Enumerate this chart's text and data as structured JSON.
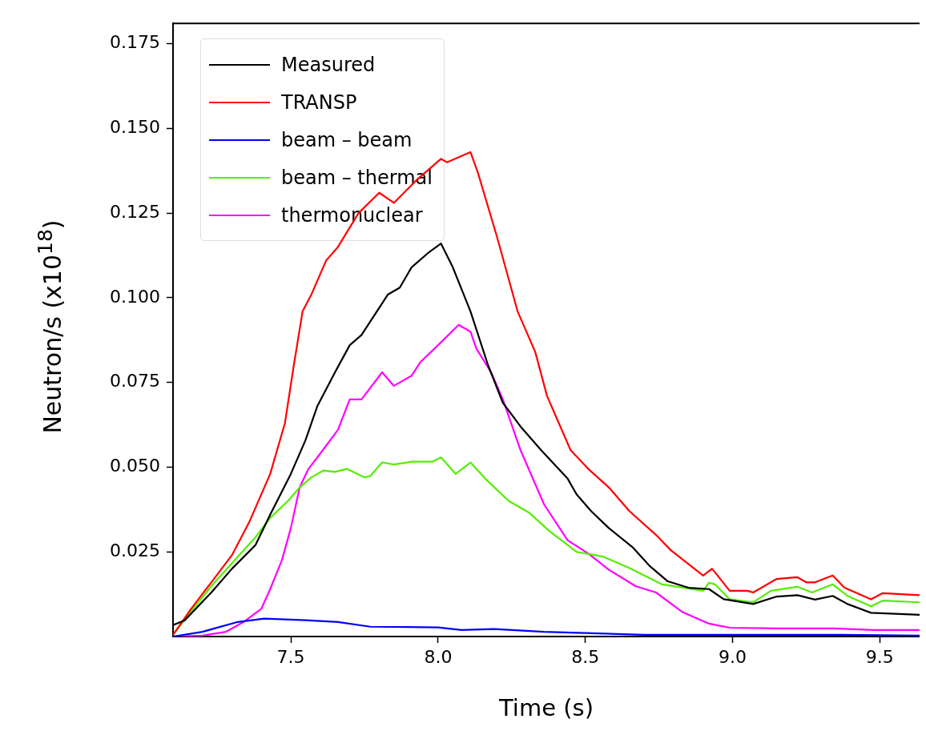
{
  "chart_data": {
    "type": "line",
    "xlabel": "Time (s)",
    "ylabel": "Neutron/s (x10$^{18}$)",
    "xlim": [
      7.1,
      9.635
    ],
    "ylim": [
      0,
      0.181
    ],
    "xticks": [
      7.5,
      {
        "value": 8,
        "label": "8.0"
      },
      8.5,
      {
        "value": 9,
        "label": "9.0"
      },
      9.5
    ],
    "yticks": [
      0.025,
      {
        "value": 0.05,
        "label": "0.050"
      },
      {
        "value": 0.075,
        "label": "0.075"
      },
      {
        "value": 0.1,
        "label": "0.100"
      },
      0.125,
      {
        "value": 0.15,
        "label": "0.150"
      },
      0.175
    ],
    "grid": false,
    "legend": "top left",
    "marker": "none",
    "line_style": "solid",
    "series": [
      {
        "name": "Measured",
        "color": "#000000",
        "x": [
          7.1,
          7.14,
          7.23,
          7.3,
          7.38,
          7.43,
          7.5,
          7.55,
          7.59,
          7.65,
          7.7,
          7.74,
          7.83,
          7.87,
          7.91,
          7.97,
          8.01,
          8.05,
          8.11,
          8.17,
          8.22,
          8.28,
          8.35,
          8.44,
          8.47,
          8.52,
          8.58,
          8.66,
          8.72,
          8.78,
          8.85,
          8.92,
          8.97,
          9.07,
          9.15,
          9.22,
          9.28,
          9.34,
          9.39,
          9.47,
          9.635
        ],
        "values": [
          0.0034,
          0.0048,
          0.013,
          0.02,
          0.027,
          0.036,
          0.048,
          0.058,
          0.068,
          0.078,
          0.086,
          0.089,
          0.101,
          0.103,
          0.109,
          0.1135,
          0.116,
          0.109,
          0.096,
          0.08,
          0.069,
          0.062,
          0.055,
          0.0466,
          0.042,
          0.037,
          0.032,
          0.0264,
          0.0207,
          0.0163,
          0.0144,
          0.014,
          0.011,
          0.0096,
          0.0118,
          0.0122,
          0.0109,
          0.012,
          0.0096,
          0.007,
          0.0064
        ]
      },
      {
        "name": "TRANSP",
        "color": "#ff0000",
        "x": [
          7.1,
          7.16,
          7.23,
          7.3,
          7.36,
          7.43,
          7.48,
          7.51,
          7.54,
          7.57,
          7.62,
          7.66,
          7.73,
          7.8,
          7.85,
          7.93,
          8.01,
          8.03,
          8.11,
          8.135,
          8.2,
          8.27,
          8.33,
          8.37,
          8.45,
          8.51,
          8.58,
          8.65,
          8.74,
          8.79,
          8.9,
          8.93,
          8.94,
          8.99,
          9.05,
          9.07,
          9.15,
          9.22,
          9.25,
          9.28,
          9.34,
          9.38,
          9.47,
          9.51,
          9.635
        ],
        "values": [
          0.0005,
          0.008,
          0.016,
          0.024,
          0.034,
          0.048,
          0.063,
          0.08,
          0.096,
          0.101,
          0.111,
          0.115,
          0.125,
          0.131,
          0.128,
          0.135,
          0.141,
          0.14,
          0.143,
          0.137,
          0.118,
          0.096,
          0.084,
          0.071,
          0.055,
          0.0495,
          0.044,
          0.037,
          0.03,
          0.0255,
          0.018,
          0.02,
          0.019,
          0.0135,
          0.0135,
          0.013,
          0.017,
          0.0175,
          0.016,
          0.016,
          0.018,
          0.0144,
          0.011,
          0.0128,
          0.0122
        ]
      },
      {
        "name": "beam – beam",
        "color": "#0000ff",
        "x": [
          7.1,
          7.2,
          7.32,
          7.41,
          7.55,
          7.66,
          7.77,
          8.0,
          8.08,
          8.19,
          8.36,
          8.7,
          9.03,
          9.37,
          9.635
        ],
        "values": [
          0,
          0.0014,
          0.0043,
          0.0053,
          0.0048,
          0.0043,
          0.0029,
          0.0027,
          0.0019,
          0.0022,
          0.0014,
          0.0005,
          0.0005,
          0.0005,
          0.0003
        ]
      },
      {
        "name": "beam – thermal",
        "color": "#55ee00",
        "x": [
          7.1,
          7.16,
          7.23,
          7.3,
          7.38,
          7.43,
          7.49,
          7.53,
          7.57,
          7.61,
          7.65,
          7.69,
          7.75,
          7.77,
          7.81,
          7.85,
          7.91,
          7.98,
          8.01,
          8.06,
          8.11,
          8.16,
          8.24,
          8.31,
          8.38,
          8.47,
          8.56,
          8.65,
          8.76,
          8.9,
          8.92,
          8.94,
          8.99,
          9.07,
          9.13,
          9.22,
          9.27,
          9.34,
          9.39,
          9.47,
          9.51,
          9.635
        ],
        "values": [
          0.0005,
          0.0072,
          0.0149,
          0.0216,
          0.0293,
          0.035,
          0.04,
          0.044,
          0.047,
          0.049,
          0.0486,
          0.0495,
          0.047,
          0.0474,
          0.0514,
          0.0508,
          0.0516,
          0.0516,
          0.0529,
          0.048,
          0.0514,
          0.0466,
          0.04,
          0.0365,
          0.031,
          0.025,
          0.0236,
          0.0202,
          0.0154,
          0.0135,
          0.0159,
          0.0154,
          0.011,
          0.0101,
          0.0135,
          0.0147,
          0.013,
          0.0154,
          0.012,
          0.0089,
          0.0106,
          0.0101
        ]
      },
      {
        "name": "thermonuclear",
        "color": "#ff00ff",
        "x": [
          7.1,
          7.2,
          7.28,
          7.34,
          7.4,
          7.43,
          7.47,
          7.5,
          7.53,
          7.56,
          7.6,
          7.66,
          7.7,
          7.74,
          7.81,
          7.85,
          7.91,
          7.94,
          8.0,
          8.07,
          8.11,
          8.13,
          8.18,
          8.22,
          8.28,
          8.36,
          8.44,
          8.51,
          8.58,
          8.67,
          8.74,
          8.83,
          8.92,
          8.99,
          9.15,
          9.34,
          9.48,
          9.635
        ],
        "values": [
          0,
          0.0003,
          0.0014,
          0.0043,
          0.0082,
          0.014,
          0.0226,
          0.032,
          0.044,
          0.0495,
          0.054,
          0.061,
          0.07,
          0.07,
          0.078,
          0.074,
          0.077,
          0.081,
          0.086,
          0.092,
          0.09,
          0.085,
          0.078,
          0.07,
          0.055,
          0.039,
          0.0284,
          0.0245,
          0.0197,
          0.0149,
          0.013,
          0.0072,
          0.0038,
          0.0026,
          0.0024,
          0.0024,
          0.0019,
          0.0019
        ]
      }
    ]
  }
}
